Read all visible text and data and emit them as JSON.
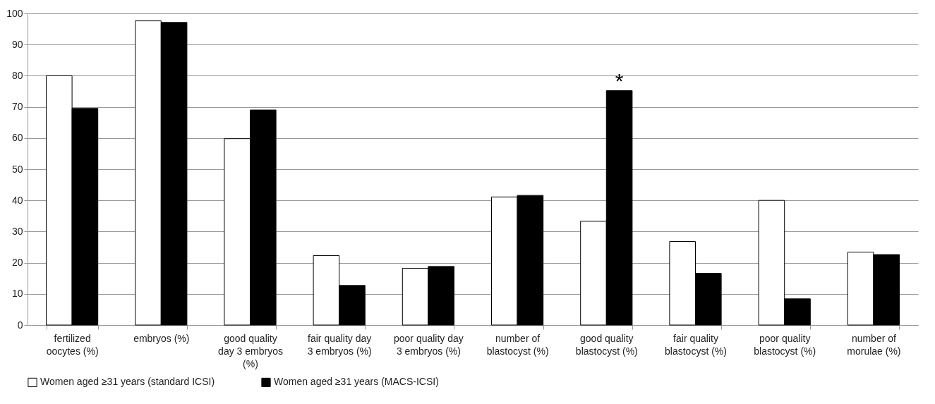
{
  "chart_data": {
    "type": "bar",
    "categories": [
      "fertilized oocytes (%)",
      "embryos (%)",
      "good quality day 3 embryos (%)",
      "fair quality day 3 embryos (%)",
      "poor quality day 3 embryos (%)",
      "number of blastocyst (%)",
      "good quality blastocyst (%)",
      "fair quality blastocyst (%)",
      "poor quality blastocyst (%)",
      "number of morulae (%)"
    ],
    "series": [
      {
        "name": "Women aged ≥31 years  (standard ICSI)",
        "color": "#ffffff",
        "values": [
          80,
          97.6,
          59.8,
          22.3,
          18.2,
          41.1,
          33.3,
          26.8,
          40,
          23.4
        ]
      },
      {
        "name": "Women aged ≥31 years (MACS-ICSI)",
        "color": "#000000",
        "values": [
          69.5,
          97.1,
          69,
          12.7,
          18.8,
          41.6,
          75.2,
          16.6,
          8.4,
          22.6
        ]
      }
    ],
    "ylim": [
      0,
      100
    ],
    "yticks": [
      0,
      10,
      20,
      30,
      40,
      50,
      60,
      70,
      80,
      90,
      100
    ],
    "grid": "y",
    "legend": "bottom",
    "annotations": [
      {
        "text": "*",
        "x": "good quality blastocyst (%)",
        "y": 75.2
      }
    ]
  }
}
